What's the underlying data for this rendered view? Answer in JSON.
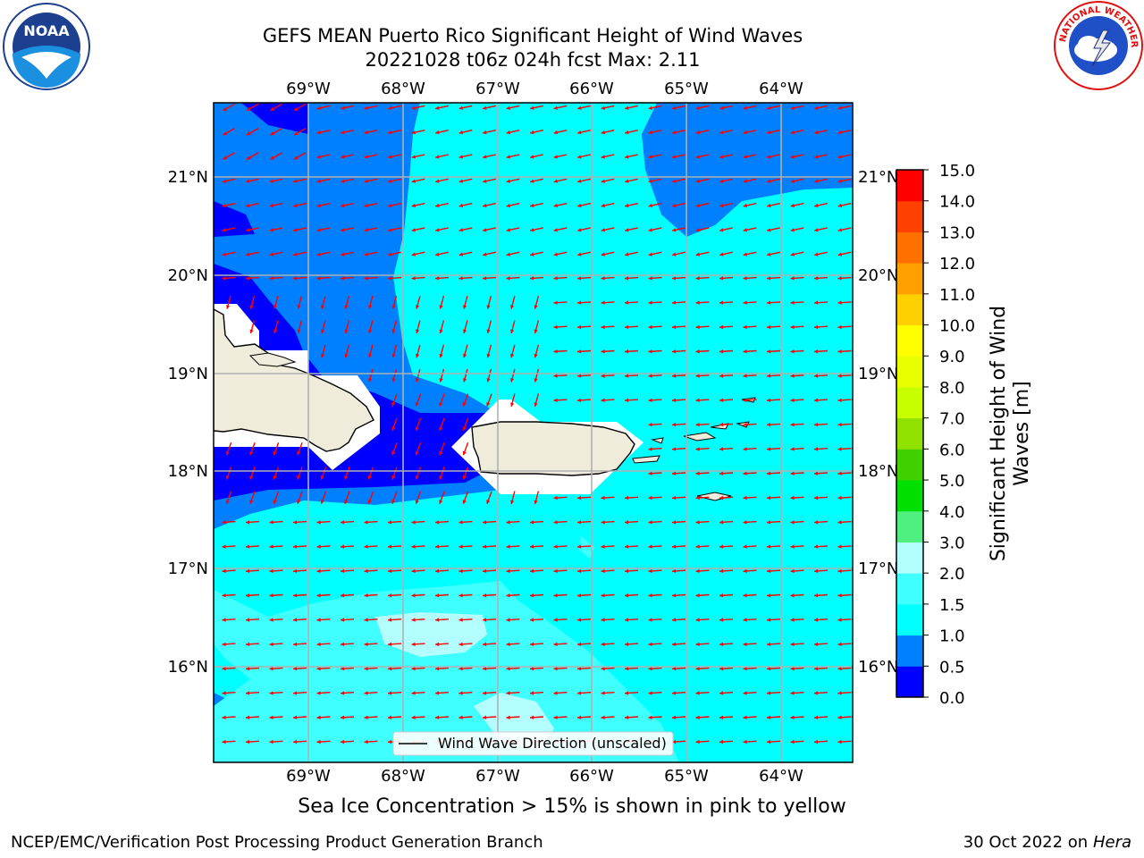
{
  "header": {
    "title_line1": "GEFS MEAN Puerto Rico Significant Height of Wind Waves",
    "title_line2": "20221028 t06z 024h fcst   Max: 2.11"
  },
  "logos": {
    "left": {
      "text": "NOAA",
      "icon": "noaa-logo-icon"
    },
    "right": {
      "text": "NATIONAL WEATHER SERVICE",
      "icon": "nws-logo-icon"
    }
  },
  "map": {
    "lon_labels": [
      "69°W",
      "68°W",
      "67°W",
      "66°W",
      "65°W",
      "64°W"
    ],
    "lat_labels": [
      "21°N",
      "20°N",
      "19°N",
      "18°N",
      "17°N",
      "16°N"
    ],
    "legend_label": "Wind Wave Direction (unscaled)",
    "arrow_color": "#ff0000",
    "land_color": "#efecdc",
    "grid": true,
    "wind_direction": "from east-northeast toward west-southwest near the islands"
  },
  "colorbar": {
    "label": "Significant Height of Wind Waves [m]",
    "label_line1": "Significant Height of Wind",
    "label_line2": "Waves [m]",
    "ticks": [
      "0.0",
      "0.5",
      "1.0",
      "1.5",
      "2.0",
      "3.0",
      "4.0",
      "5.0",
      "6.0",
      "7.0",
      "8.0",
      "9.0",
      "10.0",
      "11.0",
      "12.0",
      "13.0",
      "14.0",
      "15.0"
    ],
    "colors": [
      "#0000ff",
      "#0080ff",
      "#00ffff",
      "#40ffff",
      "#b3ffff",
      "#50f080",
      "#00e000",
      "#40d000",
      "#90e000",
      "#c8ff00",
      "#e8ff00",
      "#ffff00",
      "#ffd000",
      "#ffa000",
      "#ff7000",
      "#ff4000",
      "#ff0000"
    ]
  },
  "footer": {
    "note": "Sea Ice Concentration > 15% is shown in pink to yellow",
    "credit": "NCEP/EMC/Verification Post Processing Product Generation Branch",
    "date": "30 Oct 2022 on",
    "machine": "Hera"
  }
}
